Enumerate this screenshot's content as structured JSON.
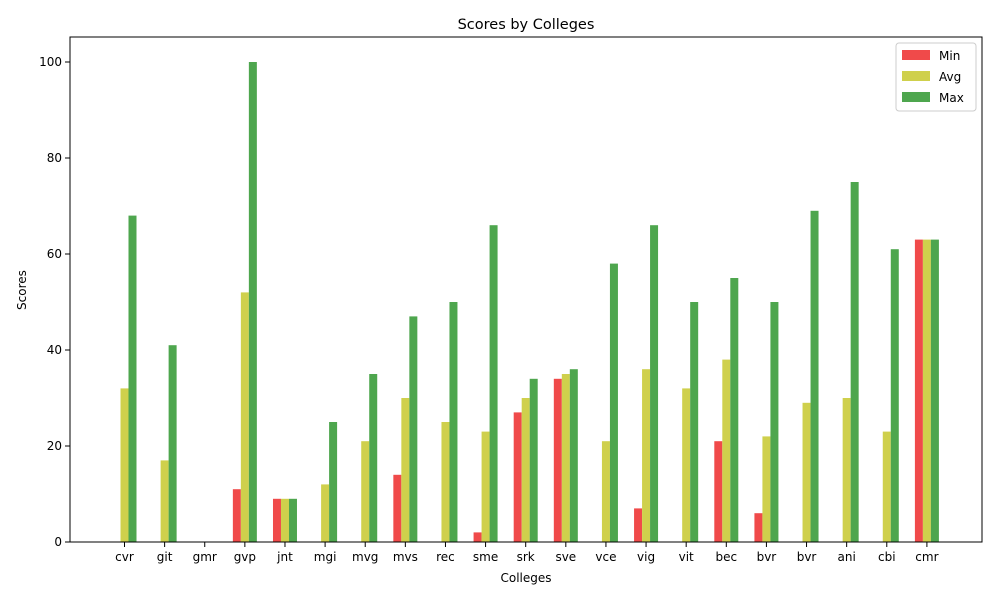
{
  "chart_data": {
    "type": "bar",
    "title": "Scores by Colleges",
    "xlabel": "Colleges",
    "ylabel": "Scores",
    "ylim": [
      0,
      105
    ],
    "yticks": [
      0,
      20,
      40,
      60,
      80,
      100
    ],
    "grid": false,
    "legend_position": "top-right",
    "categories": [
      "cvr",
      "git",
      "gmr",
      "gvp",
      "jnt",
      "mgi",
      "mvg",
      "mvs",
      "rec",
      "sme",
      "srk",
      "sve",
      "vce",
      "vig",
      "vit",
      "bec",
      "bvr",
      "bvr",
      "ani",
      "cbi",
      "cmr"
    ],
    "series": [
      {
        "name": "Min",
        "color": "#f04a4a",
        "values": [
          0,
          0,
          0,
          11,
          9,
          0,
          0,
          14,
          0,
          2,
          27,
          34,
          0,
          7,
          0,
          21,
          6,
          0,
          0,
          0,
          63
        ]
      },
      {
        "name": "Avg",
        "color": "#cfd04c",
        "values": [
          32,
          17,
          0,
          52,
          9,
          12,
          21,
          30,
          25,
          23,
          30,
          35,
          21,
          36,
          32,
          38,
          22,
          29,
          30,
          23,
          63
        ]
      },
      {
        "name": "Max",
        "color": "#4ea64e",
        "values": [
          68,
          41,
          0,
          100,
          9,
          25,
          35,
          47,
          50,
          66,
          34,
          36,
          58,
          66,
          50,
          55,
          50,
          69,
          75,
          61,
          63
        ]
      }
    ]
  }
}
